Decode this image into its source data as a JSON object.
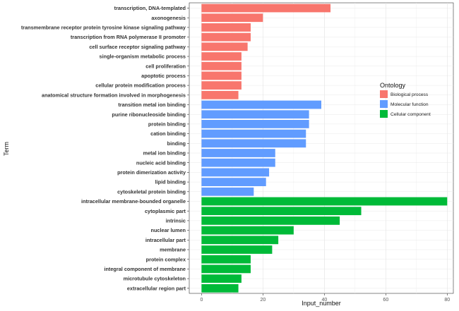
{
  "chart_data": {
    "type": "bar",
    "orientation": "horizontal",
    "xlabel": "Input_number",
    "ylabel": "Term",
    "xlim": [
      -4,
      82
    ],
    "xticks": [
      0,
      20,
      40,
      60,
      80
    ],
    "grid": true,
    "legend": {
      "title": "Ontology",
      "placement": "right",
      "entries": [
        {
          "name": "Biological process",
          "color": "#F8766D"
        },
        {
          "name": "Molecular function",
          "color": "#619CFF"
        },
        {
          "name": "Cellular component",
          "color": "#00BA38"
        }
      ]
    },
    "bars": [
      {
        "term": "transcription, DNA-templated",
        "value": 42,
        "ontology": "Biological process"
      },
      {
        "term": "axonogenesis",
        "value": 20,
        "ontology": "Biological process"
      },
      {
        "term": "transmembrane receptor protein tyrosine kinase signaling pathway",
        "value": 16,
        "ontology": "Biological process"
      },
      {
        "term": "transcription from RNA polymerase II promoter",
        "value": 16,
        "ontology": "Biological process"
      },
      {
        "term": "cell surface receptor signaling pathway",
        "value": 15,
        "ontology": "Biological process"
      },
      {
        "term": "single-organism metabolic process",
        "value": 13,
        "ontology": "Biological process"
      },
      {
        "term": "cell proliferation",
        "value": 13,
        "ontology": "Biological process"
      },
      {
        "term": "apoptotic process",
        "value": 13,
        "ontology": "Biological process"
      },
      {
        "term": "cellular protein modification process",
        "value": 13,
        "ontology": "Biological process"
      },
      {
        "term": "anatomical structure formation involved in morphogenesis",
        "value": 12,
        "ontology": "Biological process"
      },
      {
        "term": "transition metal ion binding",
        "value": 39,
        "ontology": "Molecular function"
      },
      {
        "term": "purine ribonucleoside binding",
        "value": 35,
        "ontology": "Molecular function"
      },
      {
        "term": "protein binding",
        "value": 35,
        "ontology": "Molecular function"
      },
      {
        "term": "cation binding",
        "value": 34,
        "ontology": "Molecular function"
      },
      {
        "term": "binding",
        "value": 34,
        "ontology": "Molecular function"
      },
      {
        "term": "metal ion binding",
        "value": 24,
        "ontology": "Molecular function"
      },
      {
        "term": "nucleic acid binding",
        "value": 24,
        "ontology": "Molecular function"
      },
      {
        "term": "protein dimerization activity",
        "value": 22,
        "ontology": "Molecular function"
      },
      {
        "term": "lipid binding",
        "value": 21,
        "ontology": "Molecular function"
      },
      {
        "term": "cytoskeletal protein binding",
        "value": 17,
        "ontology": "Molecular function"
      },
      {
        "term": "intracellular membrane-bounded organelle",
        "value": 80,
        "ontology": "Cellular component"
      },
      {
        "term": "cytoplasmic part",
        "value": 52,
        "ontology": "Cellular component"
      },
      {
        "term": "intrinsic",
        "value": 45,
        "ontology": "Cellular component"
      },
      {
        "term": "nuclear lumen",
        "value": 30,
        "ontology": "Cellular component"
      },
      {
        "term": "intracellular part",
        "value": 25,
        "ontology": "Cellular component"
      },
      {
        "term": "membrane",
        "value": 23,
        "ontology": "Cellular component"
      },
      {
        "term": "protein complex",
        "value": 16,
        "ontology": "Cellular component"
      },
      {
        "term": "integral component of membrane",
        "value": 16,
        "ontology": "Cellular component"
      },
      {
        "term": "microtubule cytoskeleton",
        "value": 13,
        "ontology": "Cellular component"
      },
      {
        "term": "extracellular region part",
        "value": 12,
        "ontology": "Cellular component"
      }
    ]
  }
}
